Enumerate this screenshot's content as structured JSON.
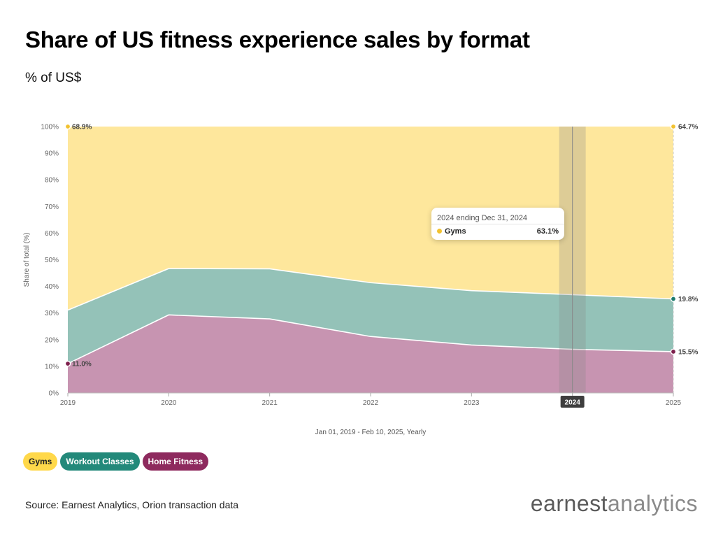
{
  "title": "Share of US fitness experience sales by format",
  "subtitle": "% of US$",
  "source": "Source: Earnest Analytics, Orion transaction data",
  "brand": {
    "part1": "earnest",
    "part2": "analytics"
  },
  "tooltip": {
    "header": "2024 ending Dec 31, 2024",
    "series": "Gyms",
    "value": "63.1%",
    "color": "#f2c230"
  },
  "legend": [
    {
      "label": "Gyms",
      "bg": "#ffd84a",
      "fg": "#222222"
    },
    {
      "label": "Workout Classes",
      "bg": "#23897a",
      "fg": "#ffffff"
    },
    {
      "label": "Home Fitness",
      "bg": "#8e2a5e",
      "fg": "#ffffff"
    }
  ],
  "chart_data": {
    "type": "area",
    "stacked": true,
    "x": [
      "2019",
      "2020",
      "2021",
      "2022",
      "2023",
      "2024",
      "2025"
    ],
    "series": [
      {
        "name": "Home Fitness",
        "color": "#c794b1",
        "values": [
          11.0,
          29.3,
          27.8,
          21.2,
          18.0,
          16.4,
          15.5
        ]
      },
      {
        "name": "Workout Classes",
        "color": "#94c2b8",
        "values": [
          20.1,
          17.4,
          18.8,
          20.2,
          20.4,
          20.5,
          19.8
        ]
      },
      {
        "name": "Gyms",
        "color": "#fee79c",
        "values": [
          68.9,
          53.3,
          53.4,
          58.6,
          61.6,
          63.1,
          64.7
        ]
      }
    ],
    "y_ticks": [
      "0%",
      "10%",
      "20%",
      "30%",
      "40%",
      "50%",
      "60%",
      "70%",
      "80%",
      "90%",
      "100%"
    ],
    "ylim": [
      0,
      100
    ],
    "ylabel": "Share of total (%)",
    "xlabel": "Jan 01, 2019 - Feb 10, 2025, Yearly",
    "highlight_x": "2024",
    "end_labels": {
      "left": [
        {
          "series": "Gyms",
          "text": "68.9%",
          "dot": "#f2c230"
        },
        {
          "series": "Home Fitness",
          "text": "11.0%",
          "dot": "#7d1f4c"
        }
      ],
      "right": [
        {
          "series": "Gyms",
          "text": "64.7%",
          "dot": "#f2c230"
        },
        {
          "series": "Workout Classes",
          "text": "19.8%",
          "dot": "#1d7a6c"
        },
        {
          "series": "Home Fitness",
          "text": "15.5%",
          "dot": "#7d1f4c"
        }
      ]
    },
    "grid": false,
    "legend_position": "bottom-left"
  }
}
